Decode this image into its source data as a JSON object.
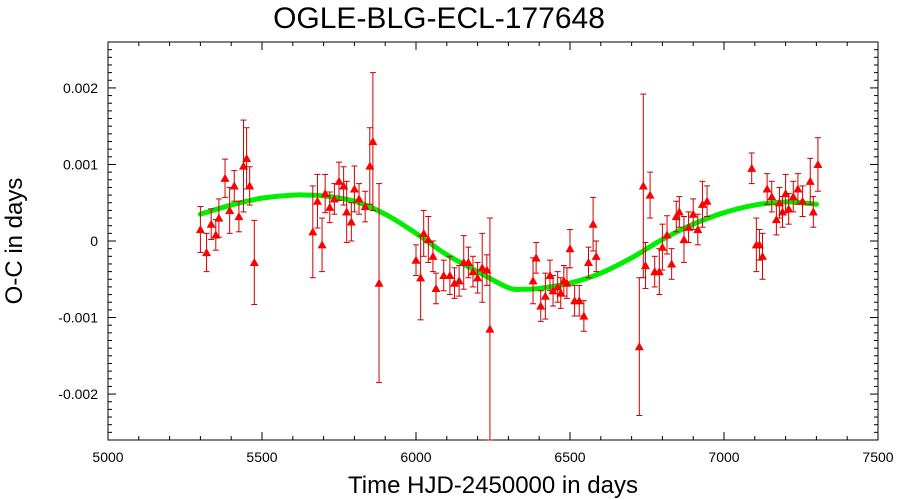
{
  "chart_data": {
    "type": "scatter",
    "title": "OGLE-BLG-ECL-177648",
    "xlabel": "Time HJD-2450000 in days",
    "ylabel": "O-C in days",
    "xlim": [
      5000,
      7500
    ],
    "ylim": [
      -0.0026,
      0.0026
    ],
    "x_ticks": [
      5000,
      5500,
      6000,
      6500,
      7000,
      7500
    ],
    "x_tick_labels": [
      "5000",
      "5500",
      "6000",
      "6500",
      "7000",
      "7500"
    ],
    "y_ticks": [
      0.002,
      0.001,
      0,
      -0.001,
      -0.002
    ],
    "y_tick_labels": [
      "0.002",
      "0.001",
      "0",
      "-0.001",
      "-0.002"
    ],
    "grid": false,
    "colors": {
      "points": "#ff0000",
      "errorbars": "#cc0000",
      "fit": "#00ee00"
    },
    "series": [
      {
        "type": "scatter-errorbar",
        "color": "#ff0000",
        "points": [
          {
            "x": 5300,
            "y": 0.00015,
            "err": 0.0003
          },
          {
            "x": 5320,
            "y": -0.00015,
            "err": 0.00025
          },
          {
            "x": 5335,
            "y": 0.00022,
            "err": 0.0002
          },
          {
            "x": 5350,
            "y": 8e-05,
            "err": 0.0002
          },
          {
            "x": 5360,
            "y": 0.0003,
            "err": 0.00025
          },
          {
            "x": 5380,
            "y": 0.00082,
            "err": 0.00025
          },
          {
            "x": 5395,
            "y": 0.0004,
            "err": 0.0003
          },
          {
            "x": 5410,
            "y": 0.00072,
            "err": 0.0002
          },
          {
            "x": 5425,
            "y": 0.00032,
            "err": 0.0002
          },
          {
            "x": 5440,
            "y": 0.00098,
            "err": 0.0006
          },
          {
            "x": 5450,
            "y": 0.00108,
            "err": 0.0004
          },
          {
            "x": 5460,
            "y": 0.00072,
            "err": 0.00025
          },
          {
            "x": 5475,
            "y": -0.00028,
            "err": 0.00055
          },
          {
            "x": 5665,
            "y": 0.00012,
            "err": 0.0006
          },
          {
            "x": 5680,
            "y": 0.00052,
            "err": 0.00035
          },
          {
            "x": 5695,
            "y": -5e-05,
            "err": 0.00035
          },
          {
            "x": 5705,
            "y": 0.00062,
            "err": 0.00025
          },
          {
            "x": 5720,
            "y": 0.00044,
            "err": 0.0002
          },
          {
            "x": 5735,
            "y": 0.00055,
            "err": 0.0002
          },
          {
            "x": 5750,
            "y": 0.00078,
            "err": 0.00025
          },
          {
            "x": 5765,
            "y": 0.00072,
            "err": 0.00025
          },
          {
            "x": 5775,
            "y": 0.00038,
            "err": 0.0004
          },
          {
            "x": 5790,
            "y": 0.00025,
            "err": 0.00025
          },
          {
            "x": 5800,
            "y": 0.00068,
            "err": 0.0003
          },
          {
            "x": 5815,
            "y": 0.00055,
            "err": 0.0002
          },
          {
            "x": 5835,
            "y": 0.00045,
            "err": 0.0002
          },
          {
            "x": 5850,
            "y": 0.00098,
            "err": 0.0005
          },
          {
            "x": 5860,
            "y": 0.0013,
            "err": 0.0009
          },
          {
            "x": 5880,
            "y": -0.00055,
            "err": 0.0013
          },
          {
            "x": 6000,
            "y": -0.00025,
            "err": 0.0002
          },
          {
            "x": 6015,
            "y": -0.00048,
            "err": 0.00055
          },
          {
            "x": 6025,
            "y": 0.0001,
            "err": 0.0003
          },
          {
            "x": 6040,
            "y": 2e-05,
            "err": 0.0003
          },
          {
            "x": 6055,
            "y": -0.0002,
            "err": 0.0002
          },
          {
            "x": 6065,
            "y": -0.00062,
            "err": 0.0002
          },
          {
            "x": 6090,
            "y": -0.00045,
            "err": 0.0002
          },
          {
            "x": 6110,
            "y": -0.00045,
            "err": 0.00025
          },
          {
            "x": 6125,
            "y": -0.00055,
            "err": 0.0002
          },
          {
            "x": 6140,
            "y": -0.00052,
            "err": 0.0002
          },
          {
            "x": 6155,
            "y": -0.00028,
            "err": 0.00035
          },
          {
            "x": 6170,
            "y": -0.00028,
            "err": 0.0002
          },
          {
            "x": 6185,
            "y": -0.0004,
            "err": 0.0002
          },
          {
            "x": 6200,
            "y": -0.00048,
            "err": 0.0002
          },
          {
            "x": 6215,
            "y": -0.00035,
            "err": 0.00045
          },
          {
            "x": 6230,
            "y": -0.00038,
            "err": 0.0002
          },
          {
            "x": 6240,
            "y": -0.00115,
            "err": 0.00145
          },
          {
            "x": 6380,
            "y": -0.00052,
            "err": 0.0003
          },
          {
            "x": 6390,
            "y": -0.00022,
            "err": 0.0002
          },
          {
            "x": 6405,
            "y": -0.00085,
            "err": 0.0002
          },
          {
            "x": 6420,
            "y": -0.00072,
            "err": 0.0003
          },
          {
            "x": 6435,
            "y": -0.00045,
            "err": 0.0002
          },
          {
            "x": 6445,
            "y": -0.00065,
            "err": 0.0002
          },
          {
            "x": 6460,
            "y": -0.0006,
            "err": 0.0002
          },
          {
            "x": 6470,
            "y": -0.00068,
            "err": 0.0002
          },
          {
            "x": 6480,
            "y": -0.00052,
            "err": 0.0002
          },
          {
            "x": 6490,
            "y": -0.00055,
            "err": 0.0002
          },
          {
            "x": 6500,
            "y": -0.0001,
            "err": 0.00025
          },
          {
            "x": 6515,
            "y": -0.00078,
            "err": 0.0002
          },
          {
            "x": 6530,
            "y": -0.00078,
            "err": 0.0002
          },
          {
            "x": 6545,
            "y": -0.00098,
            "err": 0.0002
          },
          {
            "x": 6560,
            "y": -0.00028,
            "err": 0.0002
          },
          {
            "x": 6575,
            "y": 0.00022,
            "err": 0.00035
          },
          {
            "x": 6585,
            "y": -0.0002,
            "err": 0.0002
          },
          {
            "x": 6725,
            "y": -0.00138,
            "err": 0.0009
          },
          {
            "x": 6738,
            "y": 0.00072,
            "err": 0.0012
          },
          {
            "x": 6745,
            "y": -0.00032,
            "err": 0.0003
          },
          {
            "x": 6760,
            "y": 0.0006,
            "err": 0.0003
          },
          {
            "x": 6775,
            "y": -0.0004,
            "err": 0.0002
          },
          {
            "x": 6790,
            "y": -0.0004,
            "err": 0.0003
          },
          {
            "x": 6800,
            "y": -8e-05,
            "err": 0.0003
          },
          {
            "x": 6815,
            "y": 8e-05,
            "err": 0.00025
          },
          {
            "x": 6830,
            "y": -0.0003,
            "err": 0.0002
          },
          {
            "x": 6845,
            "y": 0.00032,
            "err": 0.0002
          },
          {
            "x": 6855,
            "y": 0.00038,
            "err": 0.0002
          },
          {
            "x": 6870,
            "y": 2e-05,
            "err": 0.0003
          },
          {
            "x": 6885,
            "y": 0.00018,
            "err": 0.0002
          },
          {
            "x": 6900,
            "y": 0.00035,
            "err": 0.0002
          },
          {
            "x": 6915,
            "y": 0.00015,
            "err": 0.0002
          },
          {
            "x": 6930,
            "y": 0.00048,
            "err": 0.0003
          },
          {
            "x": 6945,
            "y": 0.00052,
            "err": 0.0002
          },
          {
            "x": 7090,
            "y": 0.00095,
            "err": 0.0002
          },
          {
            "x": 7105,
            "y": -5e-05,
            "err": 0.00035
          },
          {
            "x": 7115,
            "y": -5e-05,
            "err": 0.0002
          },
          {
            "x": 7125,
            "y": -0.0002,
            "err": 0.0003
          },
          {
            "x": 7140,
            "y": 0.00068,
            "err": 0.0002
          },
          {
            "x": 7155,
            "y": 0.00058,
            "err": 0.0002
          },
          {
            "x": 7170,
            "y": 0.00028,
            "err": 0.0002
          },
          {
            "x": 7180,
            "y": 0.0005,
            "err": 0.0002
          },
          {
            "x": 7190,
            "y": 0.00038,
            "err": 0.0002
          },
          {
            "x": 7200,
            "y": 0.00062,
            "err": 0.00025
          },
          {
            "x": 7210,
            "y": 0.00042,
            "err": 0.0002
          },
          {
            "x": 7225,
            "y": 0.00058,
            "err": 0.0002
          },
          {
            "x": 7240,
            "y": 0.00068,
            "err": 0.0002
          },
          {
            "x": 7255,
            "y": 0.00052,
            "err": 0.0002
          },
          {
            "x": 7280,
            "y": 0.00078,
            "err": 0.0003
          },
          {
            "x": 7290,
            "y": 0.00038,
            "err": 0.0002
          },
          {
            "x": 7305,
            "y": 0.001,
            "err": 0.00035
          }
        ]
      },
      {
        "type": "fit-curve",
        "color": "#00ee00",
        "x": [
          5300,
          5400,
          5500,
          5600,
          5650,
          5700,
          5800,
          5900,
          6000,
          6100,
          6200,
          6300,
          6350,
          6400,
          6500,
          6600,
          6700,
          6800,
          6900,
          7000,
          7100,
          7200,
          7250,
          7300
        ],
        "y": [
          0.00035,
          0.00047,
          0.00056,
          0.0006,
          0.0006,
          0.00059,
          0.00052,
          0.00035,
          0.0001,
          -0.00018,
          -0.0004,
          -0.00061,
          -0.00063,
          -0.00062,
          -0.00055,
          -0.00042,
          -0.00022,
          2e-05,
          0.00022,
          0.00037,
          0.00047,
          0.00051,
          0.0005,
          0.00048
        ]
      }
    ]
  }
}
